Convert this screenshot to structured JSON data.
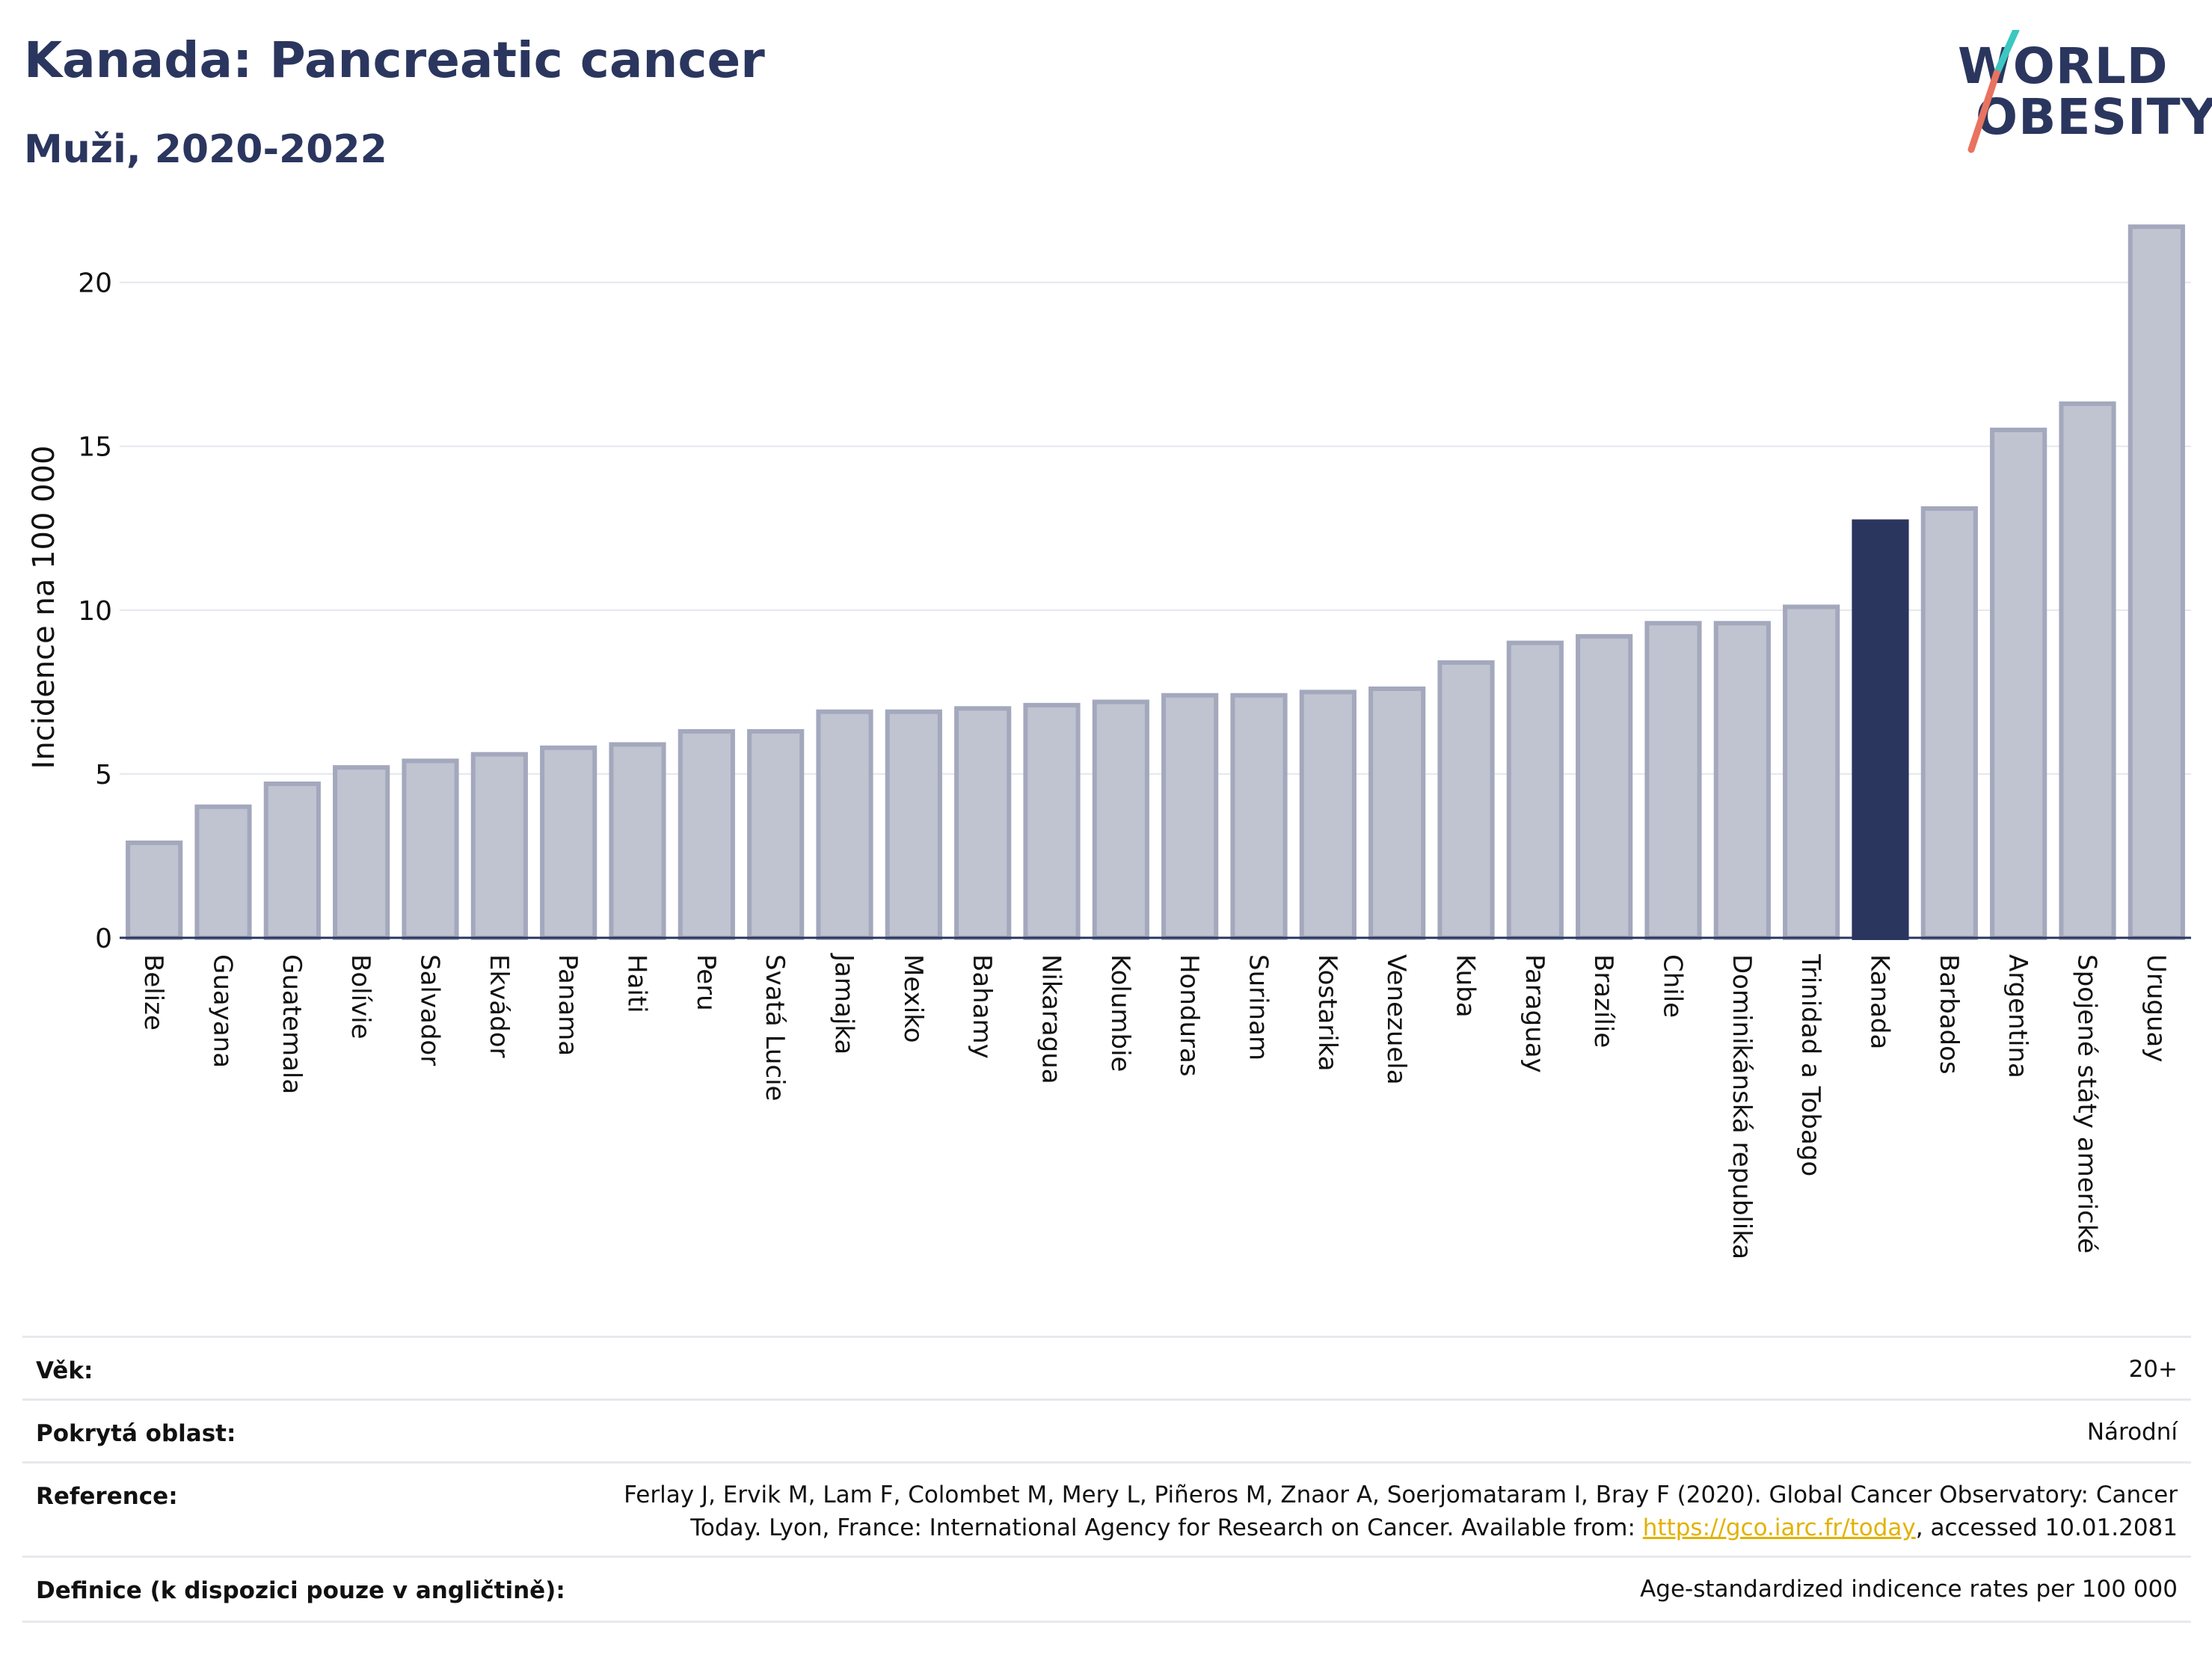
{
  "header": {
    "title": "Kanada: Pancreatic cancer",
    "subtitle": "Muži, 2020-2022"
  },
  "logo": {
    "line1": "WORLD",
    "line2": "OBESITY"
  },
  "colors": {
    "bar_default_fill": "#c0c3d0",
    "bar_default_stroke": "#a3a8bd",
    "bar_highlight": "#2b365f",
    "title": "#2b365f",
    "link": "#e2b200",
    "logo_slash_teal": "#3cc7c0",
    "logo_slash_red": "#e8735f"
  },
  "chart_data": {
    "type": "bar",
    "ylabel": "Incidence na 100 000",
    "ylim": [
      0,
      22
    ],
    "yticks": [
      0,
      5,
      10,
      15,
      20
    ],
    "grid": true,
    "highlight": "Kanada",
    "categories": [
      "Belize",
      "Guayana",
      "Guatemala",
      "Bolívie",
      "Salvador",
      "Ekvádor",
      "Panama",
      "Haiti",
      "Peru",
      "Svatá Lucie",
      "Jamajka",
      "Mexiko",
      "Bahamy",
      "Nikaragua",
      "Kolumbie",
      "Honduras",
      "Surinam",
      "Kostarika",
      "Venezuela",
      "Kuba",
      "Paraguay",
      "Brazílie",
      "Chile",
      "Dominikánská republika",
      "Trinidad a Tobago",
      "Kanada",
      "Barbados",
      "Argentina",
      "Spojené státy americké",
      "Uruguay"
    ],
    "values": [
      2.9,
      4.0,
      4.7,
      5.2,
      5.4,
      5.6,
      5.8,
      5.9,
      6.3,
      6.3,
      6.9,
      6.9,
      7.0,
      7.1,
      7.2,
      7.4,
      7.4,
      7.5,
      7.6,
      8.4,
      9.0,
      9.2,
      9.6,
      9.6,
      10.1,
      12.7,
      13.1,
      15.5,
      16.3,
      21.7
    ]
  },
  "meta": {
    "age_label": "Věk:",
    "age_value": "20+",
    "area_label": "Pokrytá oblast:",
    "area_value": "Národní",
    "reference_label": "Reference:",
    "reference_line1": "Ferlay J, Ervik M, Lam F, Colombet M, Mery L, Piñeros M, Znaor A, Soerjomataram I, Bray F (2020). Global Cancer Observatory: Cancer",
    "reference_line2_pre": "Today. Lyon, France: International Agency for Research on Cancer. Available from: ",
    "reference_link": "https://gco.iarc.fr/today",
    "reference_line2_post": ", accessed 10.01.2081",
    "definition_label": "Definice (k dispozici pouze v angličtině):",
    "definition_value": "Age-standardized indicence rates per 100 000"
  }
}
